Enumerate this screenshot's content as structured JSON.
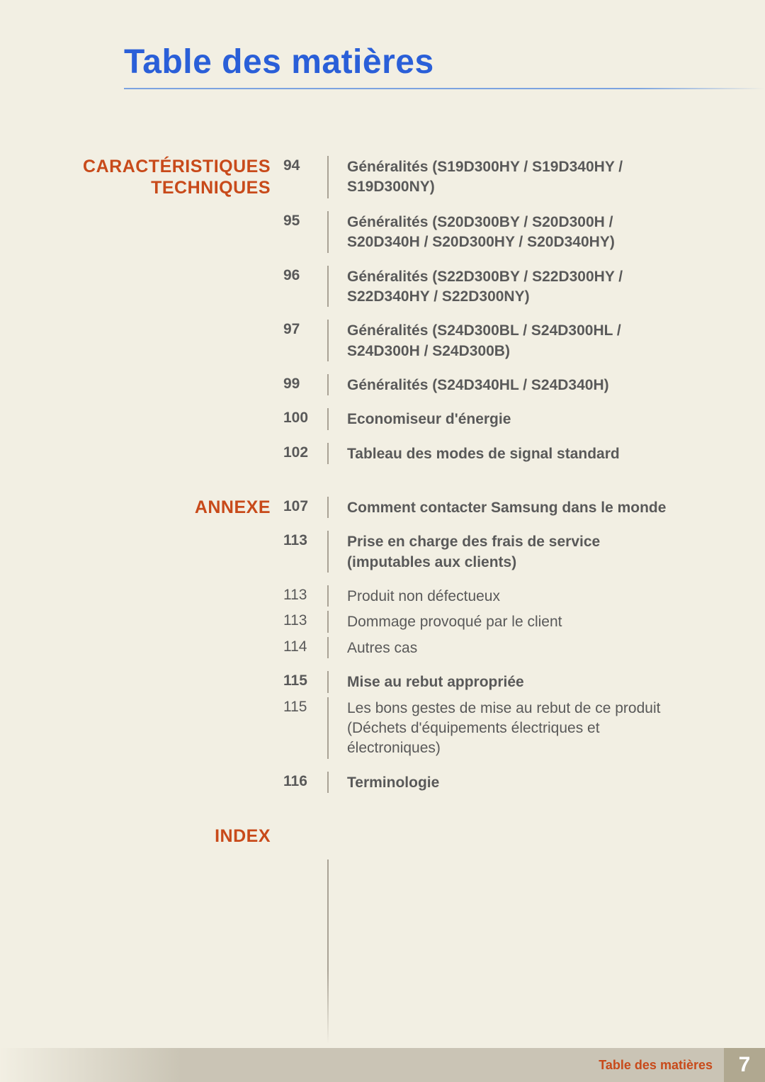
{
  "title": "Table des matières",
  "footer": {
    "label": "Table des matières",
    "page": "7"
  },
  "sections": [
    {
      "name": "CARACTÉRISTIQUES TECHNIQUES",
      "entries": [
        {
          "page": "94",
          "bold": true,
          "text": "Généralités (S19D300HY / S19D340HY / S19D300NY)"
        },
        {
          "page": "95",
          "bold": true,
          "text": "Généralités (S20D300BY / S20D300H / S20D340H / S20D300HY / S20D340HY)"
        },
        {
          "page": "96",
          "bold": true,
          "text": "Généralités (S22D300BY / S22D300HY / S22D340HY / S22D300NY)"
        },
        {
          "page": "97",
          "bold": true,
          "text": "Généralités (S24D300BL / S24D300HL / S24D300H / S24D300B)"
        },
        {
          "page": "99",
          "bold": true,
          "text": "Généralités (S24D340HL / S24D340H)"
        },
        {
          "page": "100",
          "bold": true,
          "text": "Economiseur d'énergie"
        },
        {
          "page": "102",
          "bold": true,
          "text": "Tableau des modes de signal standard"
        }
      ]
    },
    {
      "name": "ANNEXE",
      "entries": [
        {
          "page": "107",
          "bold": true,
          "text": "Comment contacter Samsung dans le monde"
        },
        {
          "page": "113",
          "bold": true,
          "text": "Prise en charge des frais de service (imputables aux clients)"
        },
        {
          "page": "113",
          "bold": false,
          "text": "Produit non défectueux",
          "tight": true
        },
        {
          "page": "113",
          "bold": false,
          "text": "Dommage provoqué par le client",
          "tight": true
        },
        {
          "page": "114",
          "bold": false,
          "text": "Autres cas"
        },
        {
          "page": "115",
          "bold": true,
          "text": "Mise au rebut appropriée",
          "tight": true
        },
        {
          "page": "115",
          "bold": false,
          "text": "Les bons gestes de mise au rebut de ce produit (Déchets d'équipements électriques et électroniques)"
        },
        {
          "page": "116",
          "bold": true,
          "text": "Terminologie"
        }
      ]
    },
    {
      "name": "INDEX",
      "entries": []
    }
  ]
}
